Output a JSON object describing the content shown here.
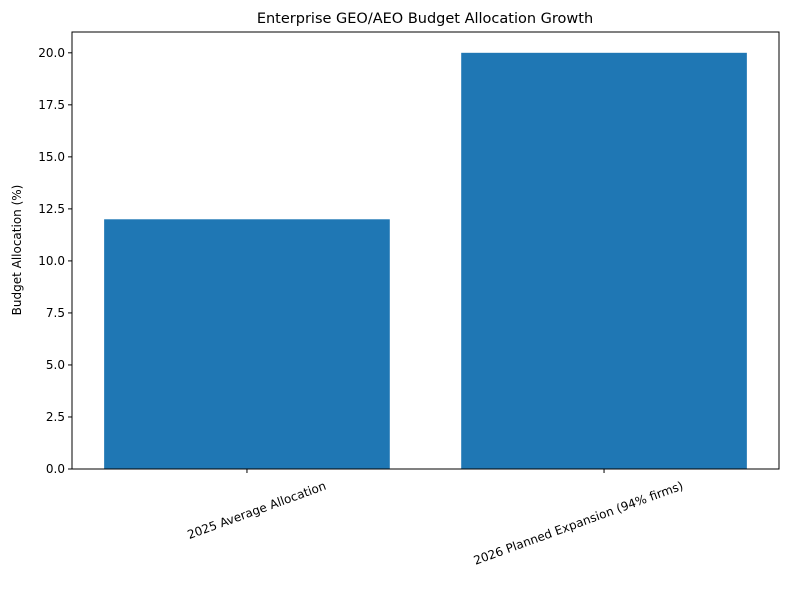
{
  "chart_data": {
    "type": "bar",
    "title": "Enterprise GEO/AEO Budget Allocation Growth",
    "y_label": "Budget Allocation (%)",
    "categories": [
      "2025 Average Allocation",
      "2026 Planned Expansion (94% firms)"
    ],
    "values": [
      12,
      20
    ],
    "color": "#1f77b4",
    "ylim": [
      0,
      21
    ],
    "yticks": [
      {
        "value": 0,
        "label": "0.0"
      },
      2.5,
      {
        "value": 5,
        "label": "5.0"
      },
      7.5,
      {
        "value": 10,
        "label": "10.0"
      },
      12.5,
      {
        "value": 15,
        "label": "15.0"
      },
      17.5,
      {
        "value": 20,
        "label": "20.0"
      }
    ],
    "grid": false
  }
}
